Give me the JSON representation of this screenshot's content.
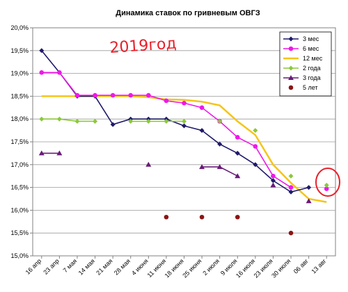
{
  "chart_data": {
    "type": "line",
    "title": "Динамика ставок по гривневым ОВГЗ",
    "annotation": "2019год",
    "xlabel": "",
    "ylabel": "",
    "ylim": [
      15.0,
      20.0
    ],
    "y_ticks": [
      "15,0%",
      "15,5%",
      "16,0%",
      "16,5%",
      "17,0%",
      "17,5%",
      "18,0%",
      "18,5%",
      "19,0%",
      "19,5%",
      "20,0%"
    ],
    "categories": [
      "16 апр",
      "23 апр",
      "7 мая",
      "14 мая",
      "21 мая",
      "28 мая",
      "4 июня",
      "11 июня",
      "18 июня",
      "25 июня",
      "2 июля",
      "9 июля",
      "16 июля",
      "23 июля",
      "30 июля",
      "06 авг",
      "13 авг"
    ],
    "grid": true,
    "legend_position": "top-right",
    "series": [
      {
        "name": "3 мес",
        "color": "#1f1a6b",
        "marker": "diamond",
        "line": true,
        "values": [
          19.5,
          19.02,
          18.5,
          18.5,
          17.88,
          18.0,
          18.0,
          18.0,
          17.85,
          17.75,
          17.45,
          17.25,
          17.0,
          16.65,
          16.4,
          16.5,
          null
        ]
      },
      {
        "name": "6 мес",
        "color": "#f018e8",
        "marker": "circle",
        "line": true,
        "values": [
          19.02,
          19.02,
          18.52,
          18.52,
          18.52,
          18.52,
          18.52,
          18.4,
          18.35,
          18.25,
          17.95,
          17.6,
          17.4,
          16.75,
          16.5,
          null,
          16.47
        ]
      },
      {
        "name": "12 мес",
        "color": "#f5c518",
        "marker": "none",
        "line": true,
        "values": [
          18.5,
          18.5,
          18.5,
          18.5,
          18.5,
          18.5,
          18.48,
          18.43,
          18.42,
          18.38,
          18.3,
          17.95,
          17.65,
          17.0,
          16.6,
          16.25,
          16.18
        ]
      },
      {
        "name": "2 года",
        "color": "#8cc83c",
        "marker": "diamond",
        "line": true,
        "values": [
          18.0,
          18.0,
          17.95,
          17.95,
          null,
          17.95,
          17.95,
          17.95,
          17.95,
          null,
          17.95,
          null,
          17.75,
          null,
          16.75,
          null,
          16.55
        ]
      },
      {
        "name": "3 года",
        "color": "#6a1a78",
        "marker": "triangle",
        "line": true,
        "values": [
          17.25,
          17.25,
          null,
          null,
          null,
          null,
          17.0,
          null,
          null,
          16.95,
          16.95,
          16.75,
          null,
          16.55,
          null,
          16.2,
          null
        ]
      },
      {
        "name": "5 лет",
        "color": "#8b1515",
        "marker": "circle",
        "line": false,
        "values": [
          null,
          null,
          null,
          null,
          null,
          null,
          null,
          15.85,
          null,
          15.85,
          null,
          15.85,
          null,
          null,
          15.5,
          null,
          null
        ]
      }
    ]
  }
}
